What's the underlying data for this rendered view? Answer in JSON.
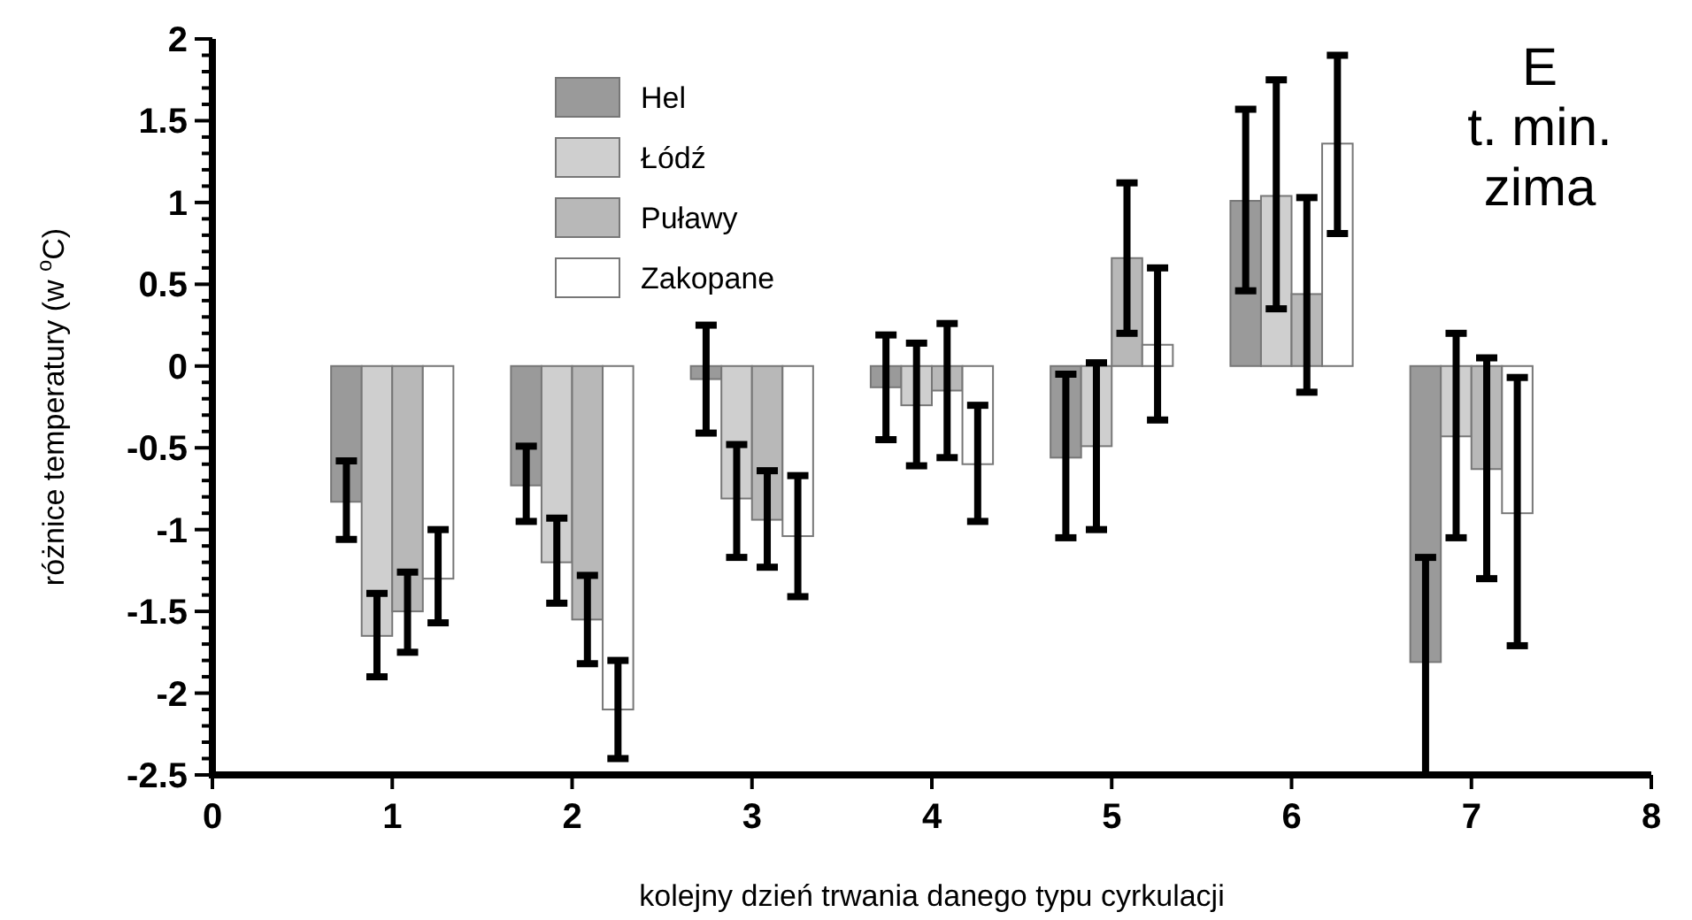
{
  "chart_data": {
    "type": "bar",
    "xlabel": "kolejny dzień trwania danego typu cyrkulacji",
    "ylabel": "różnice temperatury (w $^{o}$C)",
    "annotations": [
      "E",
      "t. min.",
      "zima"
    ],
    "x": [
      1,
      2,
      3,
      4,
      5,
      6,
      7
    ],
    "xlim": [
      0,
      8
    ],
    "xticks": [
      0,
      1,
      2,
      3,
      4,
      5,
      6,
      7,
      8
    ],
    "ylim": [
      -2.5,
      2
    ],
    "yticks": [
      {
        "value": -2.5,
        "label": "-2.5"
      },
      {
        "value": -2.4,
        "label": null
      },
      {
        "value": -2.3,
        "label": null
      },
      {
        "value": -2.2,
        "label": null
      },
      {
        "value": -2.1,
        "label": null
      },
      {
        "value": -2,
        "label": "-2"
      },
      {
        "value": -1.9,
        "label": null
      },
      {
        "value": -1.8,
        "label": null
      },
      {
        "value": -1.7,
        "label": null
      },
      {
        "value": -1.6,
        "label": null
      },
      {
        "value": -1.5,
        "label": "-1.5"
      },
      {
        "value": -1.4,
        "label": null
      },
      {
        "value": -1.3,
        "label": null
      },
      {
        "value": -1.2,
        "label": null
      },
      {
        "value": -1.1,
        "label": null
      },
      {
        "value": -1,
        "label": "-1"
      },
      {
        "value": -0.9,
        "label": null
      },
      {
        "value": -0.8,
        "label": null
      },
      {
        "value": -0.7,
        "label": null
      },
      {
        "value": -0.6,
        "label": null
      },
      {
        "value": -0.5,
        "label": "-0.5"
      },
      {
        "value": -0.4,
        "label": null
      },
      {
        "value": -0.3,
        "label": null
      },
      {
        "value": -0.2,
        "label": null
      },
      {
        "value": -0.1,
        "label": null
      },
      {
        "value": 0,
        "label": "0"
      },
      {
        "value": 0.1,
        "label": null
      },
      {
        "value": 0.2,
        "label": null
      },
      {
        "value": 0.3,
        "label": null
      },
      {
        "value": 0.4,
        "label": null
      },
      {
        "value": 0.5,
        "label": "0.5"
      },
      {
        "value": 0.6,
        "label": null
      },
      {
        "value": 0.7,
        "label": null
      },
      {
        "value": 0.8,
        "label": null
      },
      {
        "value": 0.9,
        "label": null
      },
      {
        "value": 1,
        "label": "1"
      },
      {
        "value": 1.1,
        "label": null
      },
      {
        "value": 1.2,
        "label": null
      },
      {
        "value": 1.3,
        "label": null
      },
      {
        "value": 1.4,
        "label": null
      },
      {
        "value": 1.5,
        "label": "1.5"
      },
      {
        "value": 1.6,
        "label": null
      },
      {
        "value": 1.7,
        "label": null
      },
      {
        "value": 1.8,
        "label": null
      },
      {
        "value": 1.9,
        "label": null
      },
      {
        "value": 2,
        "label": "2"
      }
    ],
    "grid": false,
    "legend": "top left",
    "series": [
      {
        "name": "Hel",
        "color": "#9a9a9a",
        "values": [
          -0.83,
          -0.73,
          -0.08,
          -0.13,
          -0.56,
          1.01,
          -1.81
        ],
        "errors": [
          [
            -1.06,
            -0.58
          ],
          [
            -0.95,
            -0.49
          ],
          [
            -0.41,
            0.25
          ],
          [
            -0.45,
            0.19
          ],
          [
            -1.05,
            -0.05
          ],
          [
            0.46,
            1.57
          ],
          [
            -2.5,
            -1.17
          ]
        ]
      },
      {
        "name": "Łódź",
        "color": "#cfcfcf",
        "values": [
          -1.65,
          -1.2,
          -0.81,
          -0.24,
          -0.49,
          1.04,
          -0.43
        ],
        "errors": [
          [
            -1.9,
            -1.39
          ],
          [
            -1.45,
            -0.93
          ],
          [
            -1.17,
            -0.48
          ],
          [
            -0.61,
            0.14
          ],
          [
            -1.0,
            0.02
          ],
          [
            0.35,
            1.75
          ],
          [
            -1.05,
            0.2
          ]
        ]
      },
      {
        "name": "Puławy",
        "color": "#b8b8b8",
        "values": [
          -1.5,
          -1.55,
          -0.94,
          -0.15,
          0.66,
          0.44,
          -0.63
        ],
        "errors": [
          [
            -1.75,
            -1.26
          ],
          [
            -1.82,
            -1.28
          ],
          [
            -1.23,
            -0.64
          ],
          [
            -0.56,
            0.26
          ],
          [
            0.2,
            1.12
          ],
          [
            -0.16,
            1.03
          ],
          [
            -1.3,
            0.05
          ]
        ]
      },
      {
        "name": "Zakopane",
        "color": "#ffffff",
        "values": [
          -1.3,
          -2.1,
          -1.04,
          -0.6,
          0.13,
          1.36,
          -0.9
        ],
        "errors": [
          [
            -1.57,
            -1.0
          ],
          [
            -2.4,
            -1.8
          ],
          [
            -1.41,
            -0.67
          ],
          [
            -0.95,
            -0.24
          ],
          [
            -0.33,
            0.6
          ],
          [
            0.81,
            1.9
          ],
          [
            -1.71,
            -0.07
          ]
        ]
      }
    ]
  }
}
